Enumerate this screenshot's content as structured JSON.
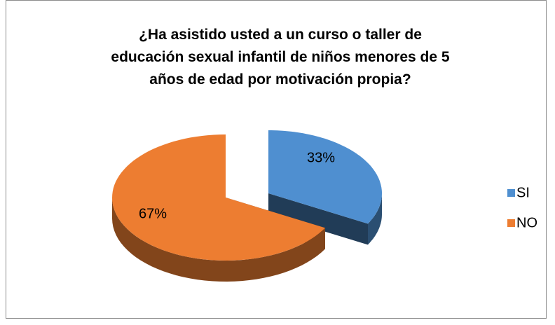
{
  "chart_data": {
    "type": "pie",
    "title": "¿Ha asistido usted a un curso o taller de educación sexual infantil de niños menores de 5 años de edad por motivación propia?",
    "categories": [
      "SI",
      "NO"
    ],
    "values": [
      33,
      67
    ],
    "value_labels": [
      "33%",
      "67%"
    ],
    "colors": [
      "#4f8fd0",
      "#ed7d31"
    ],
    "legend": "right"
  }
}
